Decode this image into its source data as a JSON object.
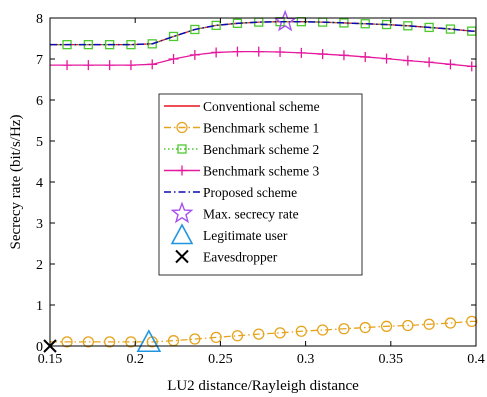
{
  "chart_data": {
    "type": "line",
    "xlabel": "LU2 distance/Rayleigh distance",
    "ylabel": "Secrecy rate (bit/s/Hz)",
    "xlim": [
      0.15,
      0.4
    ],
    "ylim": [
      0,
      8
    ],
    "xticks": [
      "0.15",
      "0.2",
      "0.25",
      "0.3",
      "0.35",
      "0.4"
    ],
    "yticks": [
      "0",
      "1",
      "2",
      "3",
      "4",
      "5",
      "6",
      "7",
      "8"
    ],
    "grid": false,
    "legend_position": "center",
    "x": [
      0.16,
      0.1725,
      0.185,
      0.1975,
      0.21,
      0.2225,
      0.235,
      0.2475,
      0.26,
      0.2725,
      0.285,
      0.2975,
      0.31,
      0.3225,
      0.335,
      0.3475,
      0.36,
      0.3725,
      0.385,
      0.3975
    ],
    "series": [
      {
        "name": "Conventional scheme",
        "color": "#e8141e",
        "style": "solid",
        "marker": "none",
        "values": [
          7.35,
          7.35,
          7.35,
          7.35,
          7.37,
          7.55,
          7.72,
          7.82,
          7.87,
          7.9,
          7.91,
          7.91,
          7.9,
          7.88,
          7.86,
          7.84,
          7.81,
          7.77,
          7.73,
          7.68
        ]
      },
      {
        "name": "Benchmark scheme 1",
        "color": "#e6a41e",
        "style": "dashdot",
        "marker": "circle",
        "values": [
          0.1,
          0.1,
          0.1,
          0.1,
          0.1,
          0.13,
          0.17,
          0.21,
          0.25,
          0.29,
          0.32,
          0.36,
          0.39,
          0.42,
          0.45,
          0.48,
          0.5,
          0.53,
          0.56,
          0.6
        ]
      },
      {
        "name": "Benchmark scheme 2",
        "color": "#4ec82e",
        "style": "dotted",
        "marker": "square",
        "values": [
          7.35,
          7.35,
          7.35,
          7.35,
          7.37,
          7.55,
          7.72,
          7.82,
          7.87,
          7.9,
          7.91,
          7.91,
          7.9,
          7.88,
          7.86,
          7.84,
          7.81,
          7.77,
          7.73,
          7.68
        ]
      },
      {
        "name": "Benchmark scheme 3",
        "color": "#e6199e",
        "style": "solid",
        "marker": "plus",
        "values": [
          6.85,
          6.85,
          6.85,
          6.85,
          6.87,
          7.0,
          7.1,
          7.16,
          7.18,
          7.18,
          7.17,
          7.15,
          7.12,
          7.09,
          7.05,
          7.01,
          6.96,
          6.92,
          6.87,
          6.82
        ]
      },
      {
        "name": "Proposed scheme",
        "color": "#0a0ab4",
        "style": "dashdot",
        "marker": "none",
        "values": [
          7.35,
          7.35,
          7.35,
          7.35,
          7.37,
          7.55,
          7.72,
          7.82,
          7.87,
          7.9,
          7.91,
          7.91,
          7.9,
          7.88,
          7.86,
          7.84,
          7.81,
          7.77,
          7.73,
          7.68
        ]
      }
    ],
    "points": [
      {
        "name": "Max. secrecy rate",
        "x": 0.288,
        "y": 7.91,
        "marker": "star",
        "color": "#a64ff0"
      },
      {
        "name": "Legitimate user",
        "x": 0.208,
        "y": 0.0,
        "marker": "triangle",
        "color": "#2196e0"
      },
      {
        "name": "Eavesdropper",
        "x": 0.15,
        "y": 0.0,
        "marker": "cross",
        "color": "#000000"
      }
    ]
  }
}
